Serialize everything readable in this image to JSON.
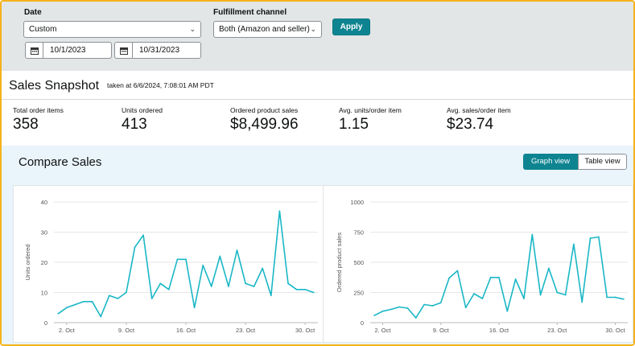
{
  "filters": {
    "date_label": "Date",
    "date_range_value": "Custom",
    "start_date": "10/1/2023",
    "end_date": "10/31/2023",
    "channel_label": "Fulfillment channel",
    "channel_value": "Both (Amazon and seller)",
    "apply_label": "Apply"
  },
  "snapshot": {
    "title": "Sales Snapshot",
    "taken_at": "taken at 6/6/2024, 7:08:01 AM PDT",
    "metrics": [
      {
        "label": "Total order items",
        "value": "358"
      },
      {
        "label": "Units ordered",
        "value": "413"
      },
      {
        "label": "Ordered product sales",
        "value": "$8,499.96"
      },
      {
        "label": "Avg. units/order item",
        "value": "1.15"
      },
      {
        "label": "Avg. sales/order item",
        "value": "$23.74"
      }
    ]
  },
  "compare": {
    "title": "Compare Sales",
    "graph_view_label": "Graph view",
    "table_view_label": "Table view"
  },
  "colors": {
    "accent": "#0e8491",
    "line": "#1ab7c6",
    "filter_bg": "#e3e6e6",
    "compare_bg": "#eaf4fb"
  },
  "chart_data": [
    {
      "type": "line",
      "ylabel": "Units ordered",
      "ylim": [
        0,
        40
      ],
      "yticks": [
        "0",
        "10",
        "20",
        "30",
        "40"
      ],
      "xticks": [
        "2. Oct",
        "9. Oct",
        "16. Oct",
        "23. Oct",
        "30. Oct"
      ],
      "x": [
        1,
        2,
        3,
        4,
        5,
        6,
        7,
        8,
        9,
        10,
        11,
        12,
        13,
        14,
        15,
        16,
        17,
        18,
        19,
        20,
        21,
        22,
        23,
        24,
        25,
        26,
        27,
        28,
        29,
        30,
        31
      ],
      "values": [
        3,
        5,
        6,
        7,
        7,
        2,
        9,
        8,
        10,
        25,
        29,
        8,
        13,
        11,
        21,
        21,
        5,
        19,
        12,
        22,
        12,
        24,
        13,
        12,
        18,
        9,
        37,
        13,
        11,
        11,
        10
      ],
      "grid": true
    },
    {
      "type": "line",
      "ylabel": "Ordered product sales",
      "ylim": [
        0,
        1000
      ],
      "yticks": [
        "0",
        "250",
        "500",
        "750",
        "1000"
      ],
      "xticks": [
        "2. Oct",
        "9. Oct",
        "16. Oct",
        "23. Oct",
        "30. Oct"
      ],
      "x": [
        1,
        2,
        3,
        4,
        5,
        6,
        7,
        8,
        9,
        10,
        11,
        12,
        13,
        14,
        15,
        16,
        17,
        18,
        19,
        20,
        21,
        22,
        23,
        24,
        25,
        26,
        27,
        28,
        29,
        30,
        31
      ],
      "values": [
        60,
        95,
        110,
        130,
        120,
        40,
        150,
        140,
        165,
        370,
        430,
        125,
        240,
        200,
        375,
        375,
        95,
        360,
        200,
        730,
        230,
        450,
        250,
        230,
        650,
        170,
        700,
        710,
        210,
        210,
        195
      ],
      "grid": true
    }
  ]
}
